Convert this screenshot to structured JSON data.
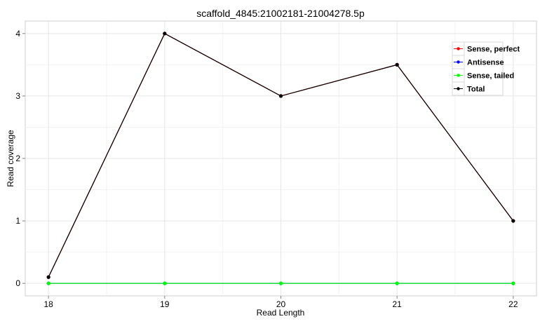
{
  "chart_data": {
    "type": "line",
    "title": "scaffold_4845:21002181-21004278.5p",
    "xlabel": "Read Length",
    "ylabel": "Read coverage",
    "x": [
      18,
      19,
      20,
      21,
      22
    ],
    "xlim": [
      17.8,
      22.2
    ],
    "ylim": [
      -0.2,
      4.2
    ],
    "xticks": [
      "18",
      "19",
      "20",
      "21",
      "22"
    ],
    "yticks": [
      "0",
      "1",
      "2",
      "3",
      "4"
    ],
    "grid": true,
    "legend_position": "top-right",
    "series": [
      {
        "name": "Sense, perfect",
        "color": "#ff0000",
        "values": [
          0.1,
          4,
          3,
          3.5,
          1
        ]
      },
      {
        "name": "Antisense",
        "color": "#0000ff",
        "values": [
          0,
          0,
          0,
          0,
          0
        ]
      },
      {
        "name": "Sense, tailed",
        "color": "#00ff00",
        "values": [
          0,
          0,
          0,
          0,
          0
        ]
      },
      {
        "name": "Total",
        "color": "#000000",
        "values": [
          0.1,
          4,
          3,
          3.5,
          1
        ]
      }
    ]
  }
}
